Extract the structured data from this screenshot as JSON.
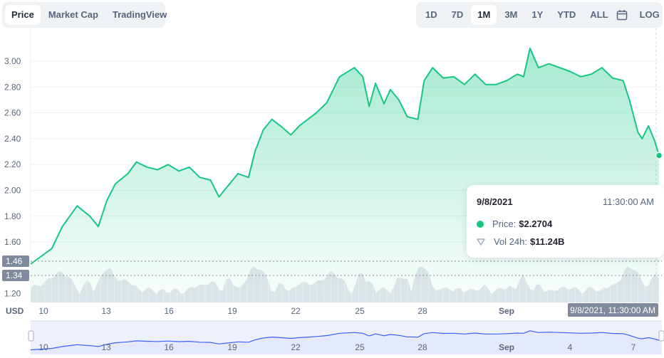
{
  "tabs_left": [
    {
      "label": "Price",
      "active": true
    },
    {
      "label": "Market Cap",
      "active": false
    },
    {
      "label": "TradingView",
      "active": false
    }
  ],
  "ranges": [
    {
      "label": "1D",
      "active": false
    },
    {
      "label": "7D",
      "active": false
    },
    {
      "label": "1M",
      "active": true
    },
    {
      "label": "3M",
      "active": false
    },
    {
      "label": "1Y",
      "active": false
    },
    {
      "label": "YTD",
      "active": false
    },
    {
      "label": "ALL",
      "active": false
    }
  ],
  "log_label": "LOG",
  "icons": {
    "calendar": "calendar-icon",
    "volume": "volume-shield-icon"
  },
  "tooltip": {
    "date": "9/8/2021",
    "time": "11:30:00 AM",
    "price_label": "Price:",
    "price_value": "$2.2704",
    "vol_label": "Vol 24h:",
    "vol_value": "$11.24B"
  },
  "colors": {
    "line": "#16c784",
    "volume": "#cfd6e4",
    "navigator_line": "#3861fb",
    "navigator_bg": "#eef1fc"
  },
  "chart_data": {
    "type": "area",
    "currency_label": "USD",
    "y_ticks": [
      "3.00",
      "2.80",
      "2.60",
      "2.40",
      "2.20",
      "2.00",
      "1.80",
      "1.60",
      "1.20"
    ],
    "ylim": [
      1.2,
      3.1
    ],
    "price_markers": [
      "1.46",
      "1.34"
    ],
    "crosshair_label": "9/8/2021, 11:30:00 AM",
    "x_ticks": [
      "10",
      "13",
      "16",
      "19",
      "22",
      "25",
      "28",
      "Sep"
    ],
    "navigator_x_ticks": [
      "10",
      "13",
      "16",
      "19",
      "22",
      "25",
      "28",
      "Sep",
      "4",
      "7"
    ],
    "x_start": "2021-08-09",
    "x_end": "2021-09-08",
    "series": [
      {
        "values": [
          [
            0.0,
            1.43
          ],
          [
            1.0,
            1.55
          ],
          [
            1.5,
            1.72
          ],
          [
            2.2,
            1.88
          ],
          [
            2.8,
            1.8
          ],
          [
            3.2,
            1.72
          ],
          [
            3.6,
            1.92
          ],
          [
            4.0,
            2.05
          ],
          [
            4.6,
            2.13
          ],
          [
            5.0,
            2.22
          ],
          [
            5.5,
            2.18
          ],
          [
            6.0,
            2.16
          ],
          [
            6.5,
            2.2
          ],
          [
            7.0,
            2.15
          ],
          [
            7.5,
            2.18
          ],
          [
            8.0,
            2.1
          ],
          [
            8.5,
            2.08
          ],
          [
            8.9,
            1.95
          ],
          [
            9.4,
            2.05
          ],
          [
            9.8,
            2.13
          ],
          [
            10.3,
            2.1
          ],
          [
            10.6,
            2.3
          ],
          [
            11.0,
            2.47
          ],
          [
            11.4,
            2.55
          ],
          [
            11.8,
            2.5
          ],
          [
            12.3,
            2.43
          ],
          [
            12.7,
            2.5
          ],
          [
            13.1,
            2.55
          ],
          [
            13.5,
            2.6
          ],
          [
            14.0,
            2.68
          ],
          [
            14.6,
            2.88
          ],
          [
            15.3,
            2.95
          ],
          [
            15.7,
            2.88
          ],
          [
            16.0,
            2.65
          ],
          [
            16.3,
            2.83
          ],
          [
            16.7,
            2.67
          ],
          [
            17.0,
            2.78
          ],
          [
            17.4,
            2.7
          ],
          [
            17.8,
            2.57
          ],
          [
            18.3,
            2.55
          ],
          [
            18.6,
            2.85
          ],
          [
            19.0,
            2.95
          ],
          [
            19.5,
            2.87
          ],
          [
            20.0,
            2.88
          ],
          [
            20.5,
            2.82
          ],
          [
            21.0,
            2.9
          ],
          [
            21.5,
            2.82
          ],
          [
            22.0,
            2.82
          ],
          [
            22.5,
            2.85
          ],
          [
            23.0,
            2.9
          ],
          [
            23.3,
            2.88
          ],
          [
            23.6,
            3.1
          ],
          [
            24.0,
            2.95
          ],
          [
            24.5,
            2.98
          ],
          [
            25.0,
            2.95
          ],
          [
            25.5,
            2.92
          ],
          [
            26.0,
            2.88
          ],
          [
            26.5,
            2.9
          ],
          [
            27.0,
            2.95
          ],
          [
            27.5,
            2.87
          ],
          [
            28.0,
            2.85
          ],
          [
            28.3,
            2.7
          ],
          [
            28.7,
            2.45
          ],
          [
            28.9,
            2.4
          ],
          [
            29.2,
            2.5
          ],
          [
            29.5,
            2.38
          ],
          [
            29.7,
            2.27
          ]
        ]
      }
    ],
    "volume_shown": true
  }
}
